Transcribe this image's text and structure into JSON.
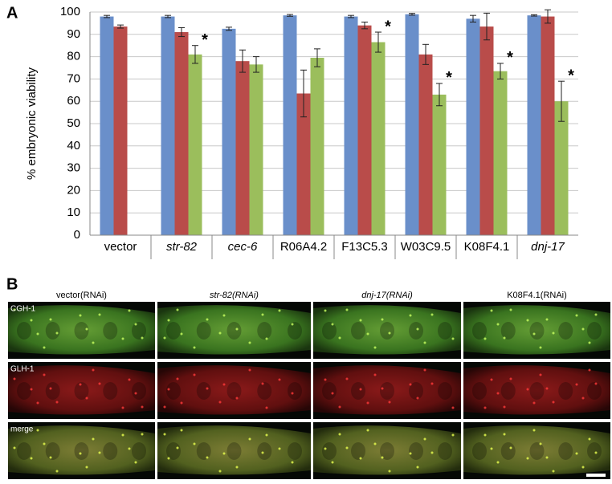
{
  "panel_labels": [
    "A",
    "B"
  ],
  "chart_data": {
    "type": "bar",
    "y_label": "% embryonic viability",
    "categories": [
      "vector",
      "str-82",
      "cec-6",
      "R06A4.2",
      "F13C5.3",
      "W03C9.5",
      "K08F4.1",
      "dnj-17"
    ],
    "category_italic": [
      false,
      true,
      true,
      false,
      false,
      false,
      false,
      true
    ],
    "series": [
      {
        "color": "#6a8fca",
        "values": [
          98,
          98,
          92.5,
          98.5,
          98,
          99,
          97,
          98.5
        ],
        "errors": [
          0.5,
          0.5,
          0.7,
          0.4,
          0.5,
          0.4,
          1.5,
          0.3
        ]
      },
      {
        "color": "#b94c4a",
        "values": [
          93.5,
          91,
          78,
          63.5,
          94,
          81,
          93.5,
          98
        ],
        "errors": [
          0.7,
          2,
          5,
          10.5,
          1.5,
          4.5,
          6,
          3
        ]
      },
      {
        "color": "#9bbe5c",
        "values": [
          null,
          81,
          76.5,
          79.5,
          86.5,
          63,
          73.5,
          60
        ],
        "errors": [
          null,
          4,
          3.5,
          4,
          4.5,
          5,
          3.5,
          9
        ]
      }
    ],
    "annotations": [
      {
        "text": "*",
        "category": "str-82"
      },
      {
        "text": "*",
        "category": "F13C5.3"
      },
      {
        "text": "*",
        "category": "W03C9.5"
      },
      {
        "text": "*",
        "category": "K08F4.1"
      },
      {
        "text": "*",
        "category": "dnj-17"
      }
    ],
    "ylim": [
      0,
      100
    ],
    "yticks": [
      0,
      10,
      20,
      30,
      40,
      50,
      60,
      70,
      80,
      90,
      100
    ],
    "grid": true
  },
  "micrographs": {
    "columns": [
      "vector(RNAi)",
      "str-82(RNAi)",
      "dnj-17(RNAi)",
      "K08F4.1(RNAi)"
    ],
    "column_italic": [
      false,
      true,
      true,
      false
    ],
    "rows": [
      "CGH-1",
      "GLH-1",
      "merge"
    ]
  }
}
